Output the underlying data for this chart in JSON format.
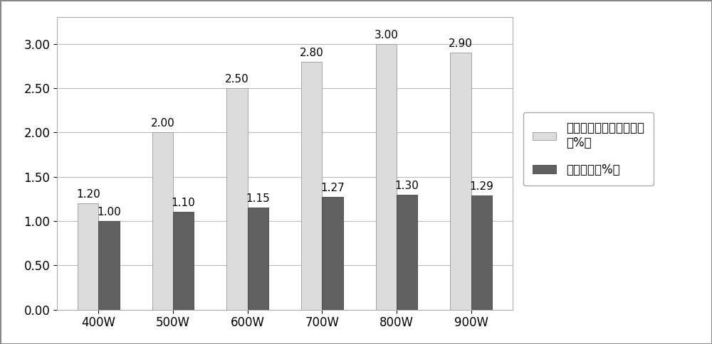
{
  "categories": [
    "400W",
    "500W",
    "600W",
    "700W",
    "800W",
    "900W"
  ],
  "series1_values": [
    1.2,
    2.0,
    2.5,
    2.8,
    3.0,
    2.9
  ],
  "series2_values": [
    1.0,
    1.1,
    1.15,
    1.27,
    1.3,
    1.29
  ],
  "series1_label": "对甲氧基肉桂酸乙酯含量\n（%）",
  "series2_label": "龙脑含量（%）",
  "series1_color": "#DCDCDC",
  "series2_color": "#606060",
  "ylim": [
    0.0,
    3.3
  ],
  "yticks": [
    0.0,
    0.5,
    1.0,
    1.5,
    2.0,
    2.5,
    3.0
  ],
  "bar_width": 0.28,
  "background_color": "#FFFFFF",
  "grid_color": "#BBBBBB",
  "tick_fontsize": 12,
  "legend_fontsize": 12,
  "annotation_fontsize": 11
}
